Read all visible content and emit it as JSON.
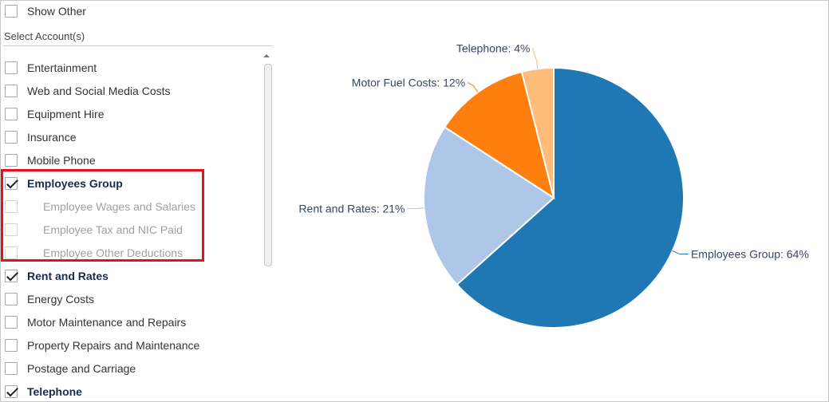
{
  "show_other": {
    "label": "Show Other",
    "checked": false
  },
  "select_account_label": "Select Account(s)",
  "accounts": [
    {
      "label": "Entertainment",
      "checked": false,
      "bold": false,
      "child": false,
      "disabled": false
    },
    {
      "label": "Web and Social Media Costs",
      "checked": false,
      "bold": false,
      "child": false,
      "disabled": false
    },
    {
      "label": "Equipment Hire",
      "checked": false,
      "bold": false,
      "child": false,
      "disabled": false
    },
    {
      "label": "Insurance",
      "checked": false,
      "bold": false,
      "child": false,
      "disabled": false
    },
    {
      "label": "Mobile Phone",
      "checked": false,
      "bold": false,
      "child": false,
      "disabled": false
    },
    {
      "label": "Employees Group",
      "checked": true,
      "bold": true,
      "child": false,
      "disabled": false
    },
    {
      "label": "Employee Wages and Salaries",
      "checked": false,
      "bold": false,
      "child": true,
      "disabled": true
    },
    {
      "label": "Employee Tax and NIC Paid",
      "checked": false,
      "bold": false,
      "child": true,
      "disabled": true
    },
    {
      "label": "Employee Other Deductions",
      "checked": false,
      "bold": false,
      "child": true,
      "disabled": true
    },
    {
      "label": "Rent and Rates",
      "checked": true,
      "bold": true,
      "child": false,
      "disabled": false
    },
    {
      "label": "Energy Costs",
      "checked": false,
      "bold": false,
      "child": false,
      "disabled": false
    },
    {
      "label": "Motor Maintenance and Repairs",
      "checked": false,
      "bold": false,
      "child": false,
      "disabled": false
    },
    {
      "label": "Property Repairs and Maintenance",
      "checked": false,
      "bold": false,
      "child": false,
      "disabled": false
    },
    {
      "label": "Postage and Carriage",
      "checked": false,
      "bold": false,
      "child": false,
      "disabled": false
    },
    {
      "label": "Telephone",
      "checked": true,
      "bold": true,
      "child": false,
      "disabled": false
    }
  ],
  "highlight_color": "#e8101c",
  "chart_data": {
    "type": "pie",
    "slices": [
      {
        "name": "Employees Group",
        "label": "Employees Group: 64%",
        "value": 64,
        "color": "#1f77b4"
      },
      {
        "name": "Rent and Rates",
        "label": "Rent and Rates: 21%",
        "value": 21,
        "color": "#aec7e8"
      },
      {
        "name": "Motor Fuel Costs",
        "label": "Motor Fuel Costs: 12%",
        "value": 12,
        "color": "#ff7f0e"
      },
      {
        "name": "Telephone",
        "label": "Telephone: 4%",
        "value": 4,
        "color": "#ffbb78"
      }
    ]
  }
}
